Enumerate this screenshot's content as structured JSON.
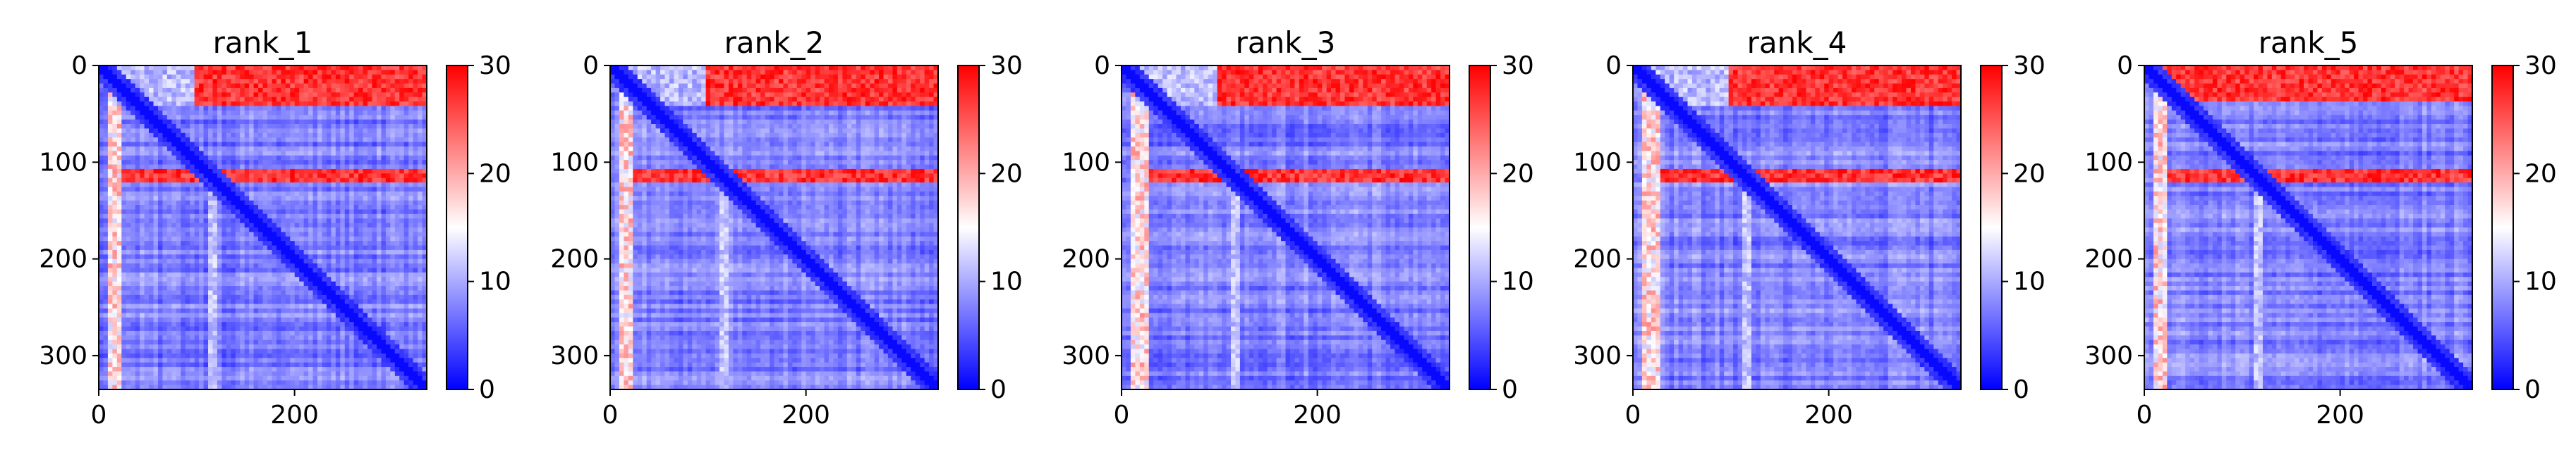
{
  "chart_data": [
    {
      "type": "heatmap",
      "title": "rank_1",
      "xticks": [
        "0",
        "200"
      ],
      "yticks": [
        "0",
        "100",
        "200",
        "300"
      ],
      "xlim": [
        0,
        335
      ],
      "ylim": [
        335,
        0
      ],
      "colorbar": {
        "ticks": [
          "0",
          "10",
          "20",
          "30"
        ],
        "range": [
          0,
          30
        ],
        "colormap": [
          "#0000ff",
          "#ffffff",
          "#ff0000"
        ]
      },
      "red_rows": [
        [
          0,
          40
        ],
        [
          105,
          120
        ]
      ],
      "red_cols": [
        [
          10,
          25
        ]
      ]
    },
    {
      "type": "heatmap",
      "title": "rank_2",
      "xticks": [
        "0",
        "200"
      ],
      "yticks": [
        "0",
        "100",
        "200",
        "300"
      ],
      "xlim": [
        0,
        335
      ],
      "ylim": [
        335,
        0
      ],
      "colorbar": {
        "ticks": [
          "0",
          "10",
          "20",
          "30"
        ],
        "range": [
          0,
          30
        ],
        "colormap": [
          "#0000ff",
          "#ffffff",
          "#ff0000"
        ]
      },
      "red_rows": [
        [
          0,
          40
        ],
        [
          105,
          120
        ]
      ],
      "red_cols": [
        [
          10,
          25
        ]
      ]
    },
    {
      "type": "heatmap",
      "title": "rank_3",
      "xticks": [
        "0",
        "200"
      ],
      "yticks": [
        "0",
        "100",
        "200",
        "300"
      ],
      "xlim": [
        0,
        335
      ],
      "ylim": [
        335,
        0
      ],
      "colorbar": {
        "ticks": [
          "0",
          "10",
          "20",
          "30"
        ],
        "range": [
          0,
          30
        ],
        "colormap": [
          "#0000ff",
          "#ffffff",
          "#ff0000"
        ]
      },
      "red_rows": [
        [
          0,
          40
        ],
        [
          105,
          120
        ]
      ],
      "red_cols": [
        [
          8,
          28
        ]
      ]
    },
    {
      "type": "heatmap",
      "title": "rank_4",
      "xticks": [
        "0",
        "200"
      ],
      "yticks": [
        "0",
        "100",
        "200",
        "300"
      ],
      "xlim": [
        0,
        335
      ],
      "ylim": [
        335,
        0
      ],
      "colorbar": {
        "ticks": [
          "0",
          "10",
          "20",
          "30"
        ],
        "range": [
          0,
          30
        ],
        "colormap": [
          "#0000ff",
          "#ffffff",
          "#ff0000"
        ]
      },
      "red_rows": [
        [
          0,
          40
        ],
        [
          105,
          120
        ]
      ],
      "red_cols": [
        [
          8,
          28
        ]
      ]
    },
    {
      "type": "heatmap",
      "title": "rank_5",
      "xticks": [
        "0",
        "200"
      ],
      "yticks": [
        "0",
        "100",
        "200",
        "300"
      ],
      "xlim": [
        0,
        335
      ],
      "ylim": [
        335,
        0
      ],
      "colorbar": {
        "ticks": [
          "0",
          "10",
          "20",
          "30"
        ],
        "range": [
          0,
          30
        ],
        "colormap": [
          "#0000ff",
          "#ffffff",
          "#ff0000"
        ]
      },
      "red_rows": [
        [
          0,
          35
        ],
        [
          105,
          120
        ]
      ],
      "red_cols": [
        [
          8,
          25
        ]
      ]
    }
  ]
}
